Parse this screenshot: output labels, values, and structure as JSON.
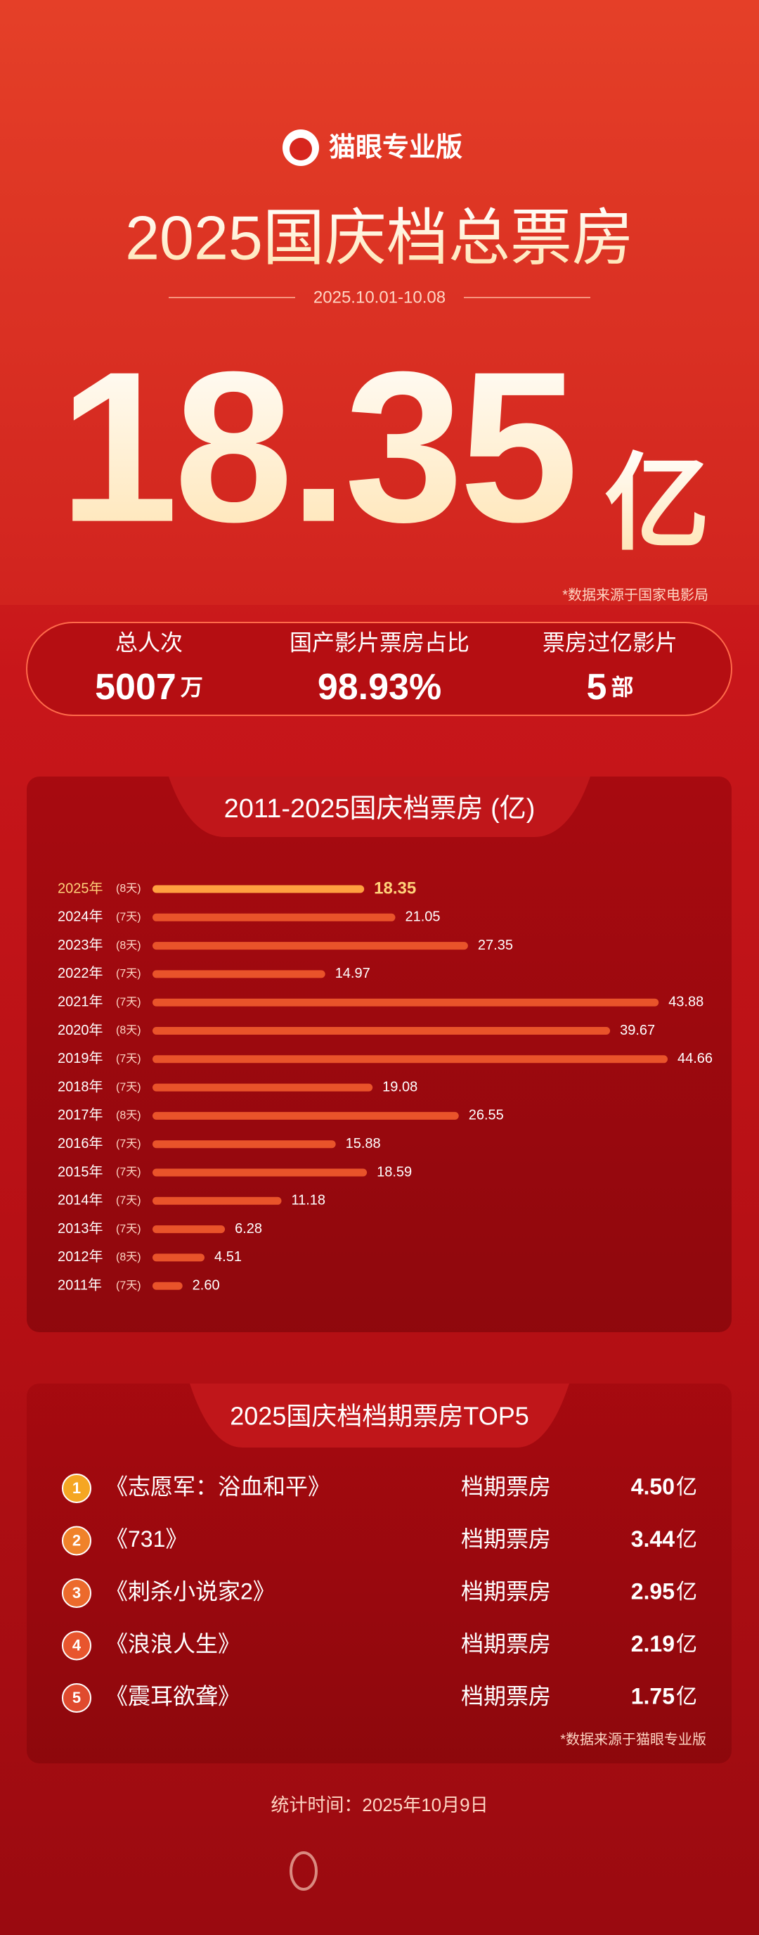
{
  "brand": "猫眼专业版",
  "title": "2025国庆档总票房",
  "date_range": "2025.10.01-10.08",
  "total": {
    "value": "18.35",
    "unit": "亿"
  },
  "source_note": "*数据来源于国家电影局",
  "stats": [
    {
      "label": "总人次",
      "value": "5007",
      "unit": "万"
    },
    {
      "label": "国产影片票房占比",
      "value": "98.93%"
    },
    {
      "label": "票房过亿影片",
      "value": "5",
      "unit": "部"
    }
  ],
  "chart_data": {
    "type": "bar",
    "orientation": "horizontal",
    "title": "2011-2025国庆档票房 (亿)",
    "categories": [
      "2025年",
      "2024年",
      "2023年",
      "2022年",
      "2021年",
      "2020年",
      "2019年",
      "2018年",
      "2017年",
      "2016年",
      "2015年",
      "2014年",
      "2013年",
      "2012年",
      "2011年"
    ],
    "durations": [
      "(8天)",
      "(7天)",
      "(8天)",
      "(7天)",
      "(7天)",
      "(8天)",
      "(7天)",
      "(7天)",
      "(8天)",
      "(7天)",
      "(7天)",
      "(7天)",
      "(7天)",
      "(8天)",
      "(7天)"
    ],
    "values": [
      18.35,
      21.05,
      27.35,
      14.97,
      43.88,
      39.67,
      44.66,
      19.08,
      26.55,
      15.88,
      18.59,
      11.18,
      6.28,
      4.51,
      2.6
    ],
    "value_labels": [
      "18.35",
      "21.05",
      "27.35",
      "14.97",
      "43.88",
      "39.67",
      "44.66",
      "19.08",
      "26.55",
      "15.88",
      "18.59",
      "11.18",
      "6.28",
      "4.51",
      "2.60"
    ],
    "colors": [
      "#ffa040",
      "#e9532a",
      "#e9532a",
      "#e9532a",
      "#e9532a",
      "#e9532a",
      "#e9532a",
      "#e9532a",
      "#e9532a",
      "#e9532a",
      "#e9532a",
      "#e9532a",
      "#e9532a",
      "#e9532a",
      "#e9532a"
    ]
  },
  "top5": {
    "title": "2025国庆档档期票房TOP5",
    "items": [
      {
        "rank": "1",
        "film": "《志愿军：浴血和平》",
        "label": "档期票房",
        "amount": "4.50",
        "unit": "亿",
        "color": "#f5a623"
      },
      {
        "rank": "2",
        "film": "《731》",
        "label": "档期票房",
        "amount": "3.44",
        "unit": "亿",
        "color": "#f0822a"
      },
      {
        "rank": "3",
        "film": "《刺杀小说家2》",
        "label": "档期票房",
        "amount": "2.95",
        "unit": "亿",
        "color": "#ec6a2c"
      },
      {
        "rank": "4",
        "film": "《浪浪人生》",
        "label": "档期票房",
        "amount": "2.19",
        "unit": "亿",
        "color": "#e8552e"
      },
      {
        "rank": "5",
        "film": "《震耳欲聋》",
        "label": "档期票房",
        "amount": "1.75",
        "unit": "亿",
        "color": "#e04a2e"
      }
    ]
  },
  "source_note2": "*数据来源于猫眼专业版",
  "stat_time": "统计时间：2025年10月9日"
}
